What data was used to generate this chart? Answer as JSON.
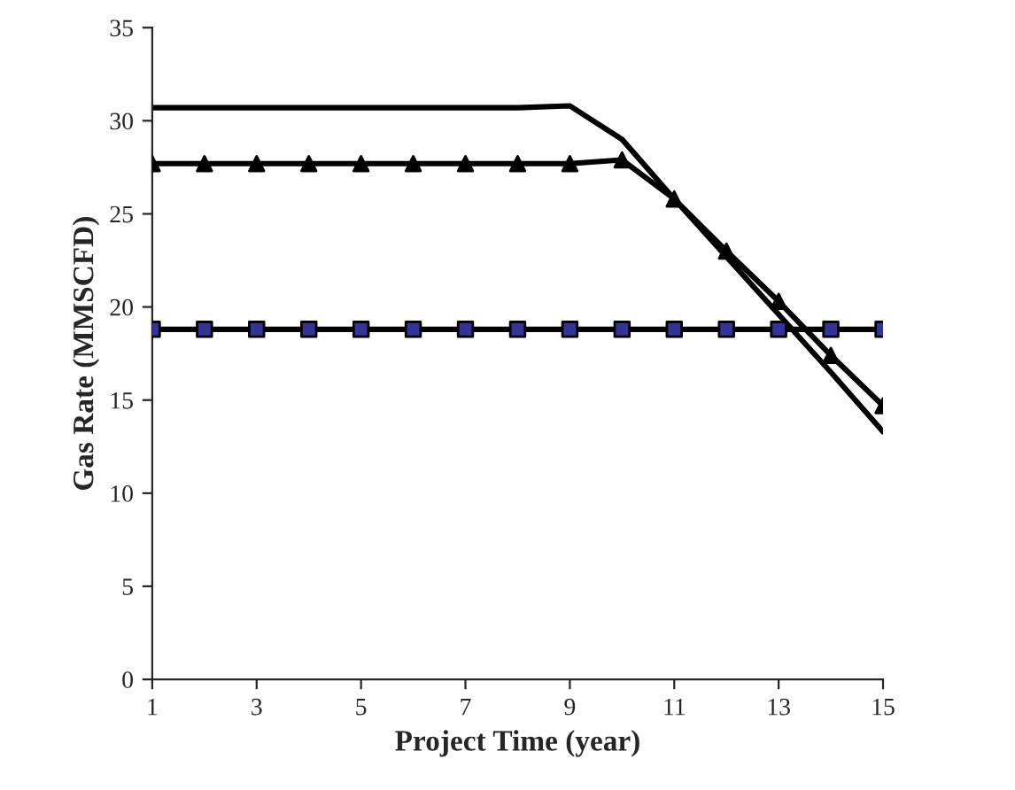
{
  "chart_data": {
    "type": "line",
    "xlabel": "Project Time (year)",
    "ylabel": "Gas Rate (MMSCFD)",
    "x": [
      1,
      2,
      3,
      4,
      5,
      6,
      7,
      8,
      9,
      10,
      11,
      12,
      13,
      14,
      15
    ],
    "series": [
      {
        "color": "#000000",
        "marker": "none",
        "values": [
          30.7,
          30.7,
          30.7,
          30.7,
          30.7,
          30.7,
          30.7,
          30.7,
          30.8,
          29.0,
          25.8,
          22.7,
          19.6,
          16.5,
          13.3
        ]
      },
      {
        "color": "#000000",
        "marker": "triangle",
        "values": [
          27.7,
          27.7,
          27.7,
          27.7,
          27.7,
          27.7,
          27.7,
          27.7,
          27.7,
          27.9,
          25.8,
          23.0,
          20.3,
          17.4,
          14.7
        ]
      },
      {
        "color": "#000000",
        "colors": [
          "#333399",
          "#333399",
          "#333399",
          "#333399",
          "#333399",
          "#333399",
          "#333399",
          "#333399",
          "#333399",
          "#333399",
          "#333399",
          "#333399",
          "#333399",
          "#333399",
          "#333399"
        ],
        "marker": "square",
        "values": [
          18.8,
          18.8,
          18.8,
          18.8,
          18.8,
          18.8,
          18.8,
          18.8,
          18.8,
          18.8,
          18.8,
          18.8,
          18.8,
          18.8,
          18.8
        ]
      }
    ],
    "xlim": [
      1,
      15
    ],
    "xticks": [
      1,
      3,
      5,
      7,
      9,
      11,
      13,
      15
    ],
    "ylim": [
      0,
      35
    ],
    "yticks": [
      0,
      5,
      10,
      15,
      20,
      25,
      30,
      35
    ],
    "grid": false,
    "legend": false,
    "line_style": "solid"
  }
}
